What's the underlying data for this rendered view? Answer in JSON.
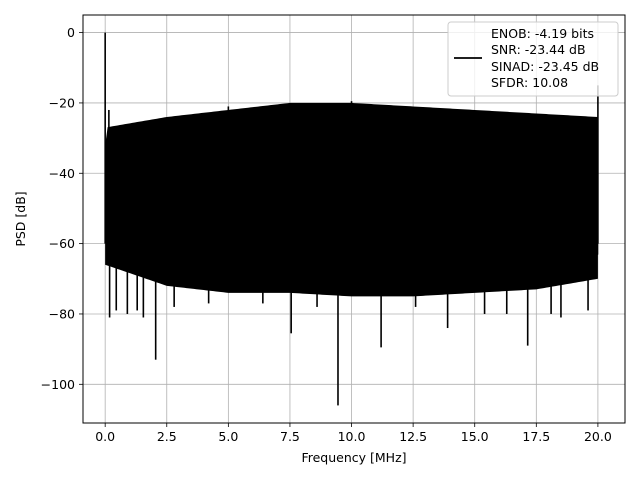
{
  "chart_data": {
    "type": "line",
    "title": "",
    "xlabel": "Frequency [MHz]",
    "ylabel": "PSD [dB]",
    "xlim": [
      -0.9,
      21.1
    ],
    "ylim": [
      -111,
      5
    ],
    "x_ticks": [
      0.0,
      2.5,
      5.0,
      7.5,
      10.0,
      12.5,
      15.0,
      17.5,
      20.0
    ],
    "x_tick_labels": [
      "0.0",
      "2.5",
      "5.0",
      "7.5",
      "10.0",
      "12.5",
      "15.0",
      "17.5",
      "20.0"
    ],
    "y_ticks": [
      0,
      -20,
      -40,
      -60,
      -80,
      -100
    ],
    "y_tick_labels": [
      "0",
      "−20",
      "−40",
      "−60",
      "−80",
      "−100"
    ],
    "grid": true,
    "line_color": "#000000",
    "legend": {
      "placement": "upper-right",
      "entries": [
        "ENOB: -4.19 bits",
        "SNR: -23.44 dB",
        "SINAD: -23.45 dB",
        "SFDR: 10.08"
      ]
    },
    "series": [
      {
        "x_range": [
          0.0,
          20.0
        ],
        "dc_peak": {
          "x": 0.0,
          "y": 0
        },
        "nyquist_peak": {
          "x": 20.0,
          "y": -15
        },
        "envelope": [
          {
            "x": 0.0,
            "top": -30,
            "bottom": -62
          },
          {
            "x": 2.5,
            "top": -27,
            "bottom": -68
          },
          {
            "x": 5.0,
            "top": -25,
            "bottom": -70
          },
          {
            "x": 7.5,
            "top": -23,
            "bottom": -70
          },
          {
            "x": 10.0,
            "top": -23,
            "bottom": -71
          },
          {
            "x": 12.5,
            "top": -24,
            "bottom": -71
          },
          {
            "x": 15.0,
            "top": -25,
            "bottom": -70
          },
          {
            "x": 17.5,
            "top": -26,
            "bottom": -69
          },
          {
            "x": 20.0,
            "top": -27,
            "bottom": -66
          }
        ],
        "spikes_up": [
          {
            "x": 0.15,
            "y": -22
          },
          {
            "x": 5.0,
            "y": -21
          },
          {
            "x": 10.0,
            "y": -19.5
          }
        ],
        "spikes_down": [
          {
            "x": 0.18,
            "y": -81
          },
          {
            "x": 0.45,
            "y": -79
          },
          {
            "x": 0.9,
            "y": -80
          },
          {
            "x": 1.3,
            "y": -79
          },
          {
            "x": 1.55,
            "y": -81
          },
          {
            "x": 2.05,
            "y": -93
          },
          {
            "x": 2.8,
            "y": -78
          },
          {
            "x": 4.2,
            "y": -77
          },
          {
            "x": 6.4,
            "y": -77
          },
          {
            "x": 7.55,
            "y": -85.5
          },
          {
            "x": 8.6,
            "y": -78
          },
          {
            "x": 9.45,
            "y": -106
          },
          {
            "x": 11.2,
            "y": -89.5
          },
          {
            "x": 12.6,
            "y": -78
          },
          {
            "x": 13.9,
            "y": -84
          },
          {
            "x": 15.4,
            "y": -80
          },
          {
            "x": 16.3,
            "y": -80
          },
          {
            "x": 17.15,
            "y": -89
          },
          {
            "x": 18.1,
            "y": -80
          },
          {
            "x": 18.5,
            "y": -81
          },
          {
            "x": 19.6,
            "y": -79
          }
        ]
      }
    ]
  }
}
